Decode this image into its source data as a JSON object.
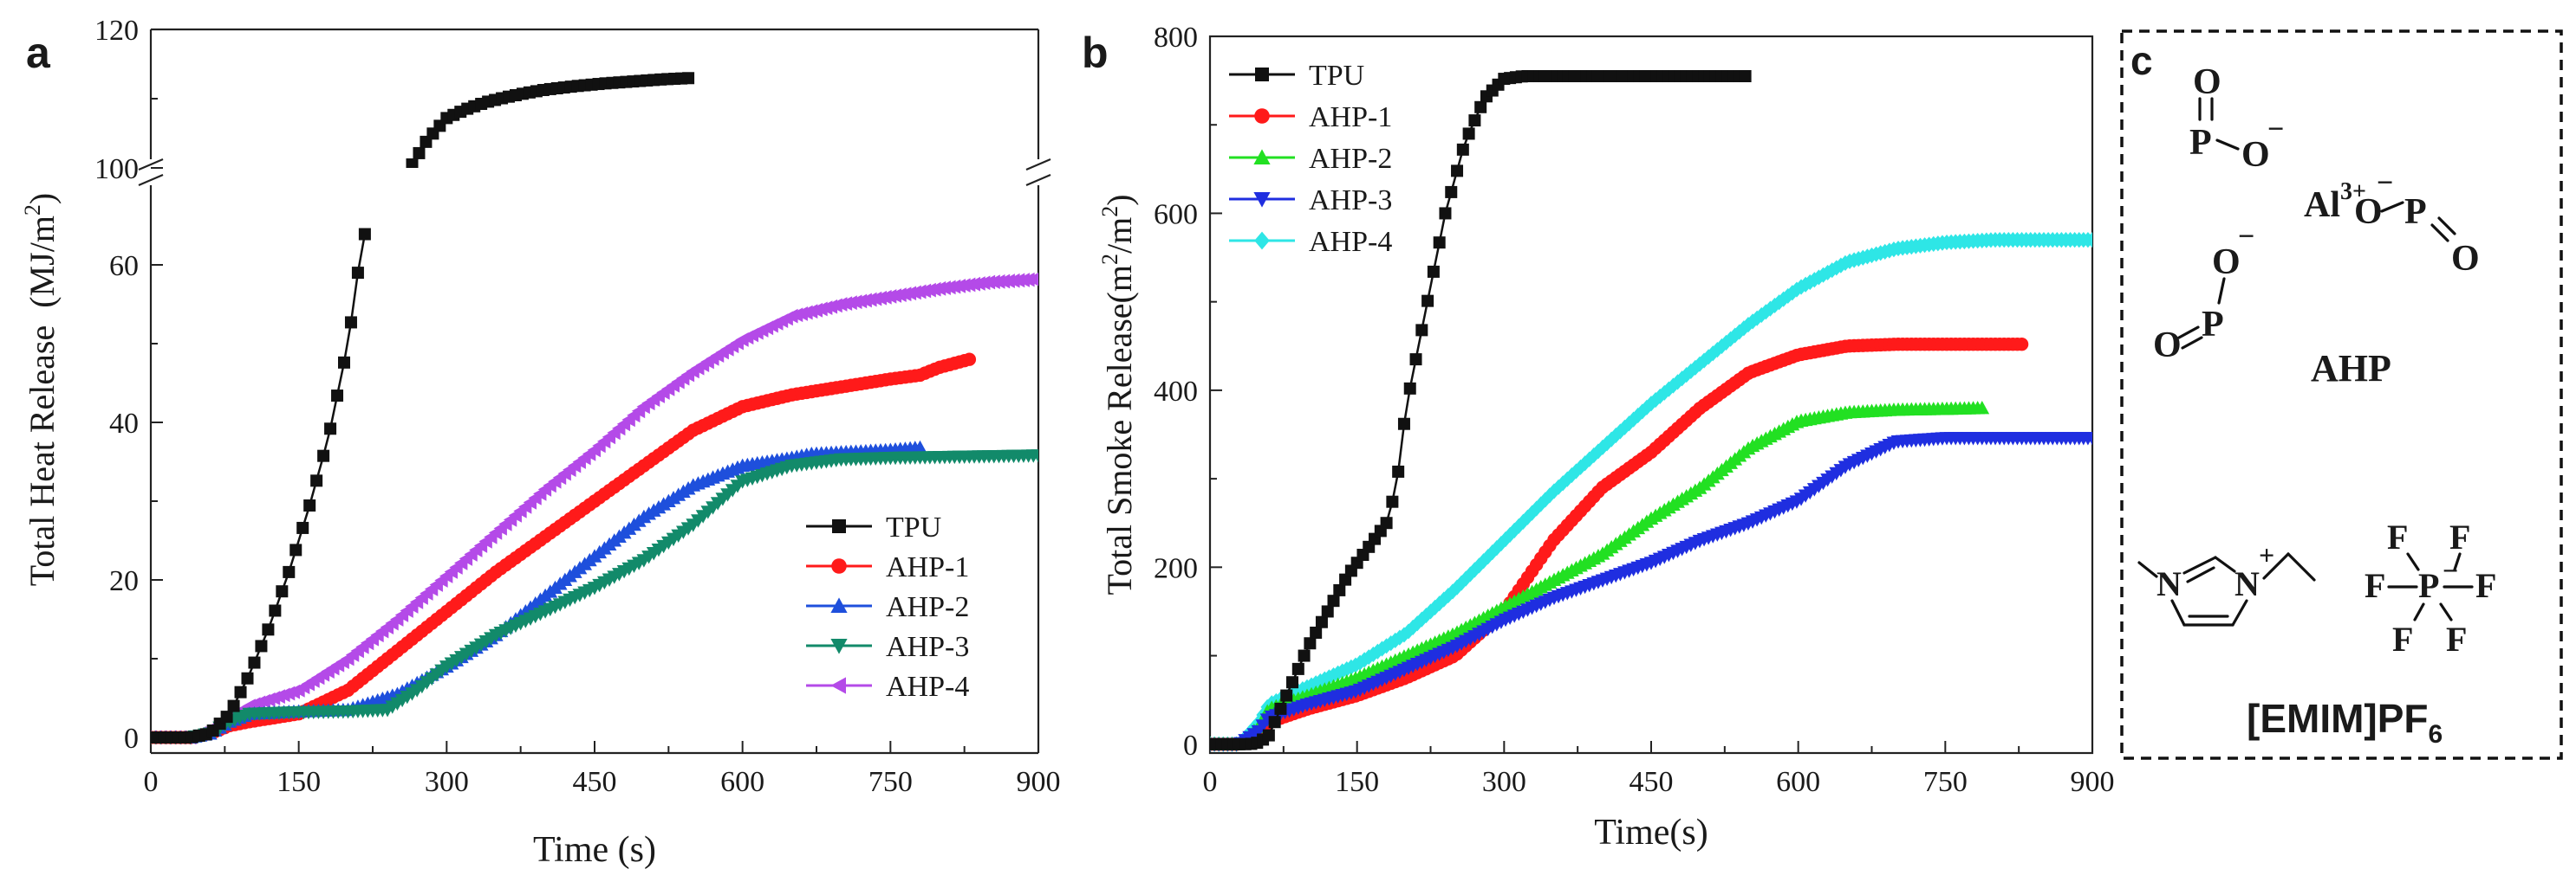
{
  "colors": {
    "TPU": "#111111",
    "AHP-1": "#ff1a1a",
    "AHP-2": "#1e4fdc",
    "AHP-3": "#128a6a",
    "AHP-4": "#b44ae8",
    "AHP-2-b": "#22e022",
    "AHP-3-b": "#1f2ee0",
    "AHP-4-b": "#2ee6e6"
  },
  "chart_data": [
    {
      "panel": "a",
      "type": "line",
      "title": "",
      "xlabel": "Time (s)",
      "ylabel": "Total Heat Release (MJ/m²)",
      "ylabel_main": "Total Heat Release  (MJ/m",
      "ylabel_sup": "2",
      "ylabel_end": ")",
      "xlim": [
        0,
        900
      ],
      "ylim_lower": [
        -2,
        68
      ],
      "ylim_upper": [
        100,
        120
      ],
      "axis_break": true,
      "xticks": [
        "0",
        "150",
        "300",
        "450",
        "600",
        "750",
        "900"
      ],
      "yticks_lower": [
        "0",
        "20",
        "40",
        "60"
      ],
      "yticks_upper": [
        "100",
        "120"
      ],
      "legend_position": "right-middle",
      "series": [
        {
          "name": "TPU",
          "marker": "square",
          "segments": [
            {
              "x": [
                0,
                40,
                60,
                80,
                100,
                120,
                140,
                160,
                180,
                200,
                210,
                220
              ],
              "y": [
                0,
                0,
                0.5,
                3,
                8,
                14,
                21,
                29,
                38,
                50,
                59,
                66
              ]
            },
            {
              "x": [
                265,
                280,
                300,
                320,
                340,
                360,
                380,
                400,
                430,
                460,
                490,
                520,
                550
              ],
              "y": [
                100.5,
                104,
                107.2,
                108.5,
                109.5,
                110.2,
                110.8,
                111.3,
                111.8,
                112.2,
                112.5,
                112.8,
                113
              ]
            }
          ]
        },
        {
          "name": "AHP-1",
          "marker": "circle",
          "x": [
            0,
            40,
            60,
            80,
            100,
            150,
            200,
            250,
            300,
            350,
            400,
            450,
            500,
            550,
            600,
            650,
            700,
            750,
            780,
            800,
            830
          ],
          "y": [
            0,
            0,
            0.5,
            1.5,
            2,
            3,
            6,
            11,
            16,
            21,
            25.5,
            30,
            34.5,
            39,
            42,
            43.5,
            44.5,
            45.5,
            46,
            47,
            48
          ]
        },
        {
          "name": "AHP-2",
          "marker": "triangle-up",
          "x": [
            0,
            40,
            60,
            80,
            100,
            150,
            200,
            250,
            300,
            350,
            400,
            450,
            500,
            550,
            600,
            650,
            670,
            700,
            750,
            780
          ],
          "y": [
            0,
            0,
            0.5,
            2,
            3,
            3.3,
            3.5,
            5.5,
            9,
            13,
            18,
            23,
            28,
            32,
            34.5,
            35.5,
            36,
            36.2,
            36.5,
            36.8
          ]
        },
        {
          "name": "AHP-3",
          "marker": "triangle-down",
          "x": [
            0,
            40,
            60,
            80,
            100,
            150,
            200,
            240,
            270,
            300,
            350,
            400,
            450,
            500,
            550,
            600,
            650,
            700,
            750,
            800,
            850,
            900
          ],
          "y": [
            0,
            0,
            0.5,
            2,
            3,
            3.2,
            3.3,
            3.5,
            6,
            9,
            13,
            16,
            19,
            22.5,
            27,
            32.5,
            34.5,
            35.3,
            35.5,
            35.6,
            35.7,
            35.8
          ]
        },
        {
          "name": "AHP-4",
          "marker": "triangle-left",
          "x": [
            0,
            40,
            60,
            80,
            100,
            150,
            200,
            250,
            300,
            350,
            400,
            450,
            500,
            550,
            600,
            650,
            700,
            750,
            800,
            850,
            900
          ],
          "y": [
            0,
            0,
            1,
            2.5,
            4,
            6,
            10,
            15,
            20.5,
            26,
            31.5,
            36.5,
            42,
            46.5,
            50.5,
            53.5,
            55,
            56,
            57,
            57.8,
            58.2
          ]
        }
      ]
    },
    {
      "panel": "b",
      "type": "line",
      "title": "",
      "xlabel": "Time(s)",
      "ylabel": "Total Smoke Release(m²/m²)",
      "ylabel_main": "Total Smoke Release(m",
      "ylabel_sup": "2",
      "ylabel_mid": "/m",
      "ylabel_sup2": "2",
      "ylabel_end": ")",
      "xlim": [
        0,
        900
      ],
      "ylim": [
        -10,
        800
      ],
      "xticks": [
        "0",
        "150",
        "300",
        "450",
        "600",
        "750",
        "900"
      ],
      "yticks": [
        "0",
        "200",
        "400",
        "600",
        "800"
      ],
      "legend_position": "top-left",
      "series": [
        {
          "name": "TPU",
          "marker": "square",
          "x": [
            0,
            40,
            50,
            60,
            80,
            100,
            120,
            140,
            160,
            180,
            190,
            200,
            220,
            240,
            260,
            280,
            300,
            320,
            350,
            400,
            450,
            500,
            550
          ],
          "y": [
            0,
            0,
            2,
            10,
            60,
            110,
            150,
            190,
            220,
            250,
            290,
            380,
            490,
            600,
            680,
            730,
            752,
            755,
            755,
            755,
            755,
            755,
            755
          ]
        },
        {
          "name": "AHP-1",
          "marker": "circle",
          "x": [
            0,
            30,
            50,
            60,
            100,
            150,
            200,
            250,
            300,
            350,
            400,
            450,
            500,
            550,
            600,
            650,
            700,
            750,
            830
          ],
          "y": [
            0,
            0,
            10,
            25,
            40,
            55,
            75,
            100,
            150,
            230,
            290,
            330,
            380,
            420,
            440,
            450,
            452,
            452,
            452
          ]
        },
        {
          "name": "AHP-2",
          "marker": "triangle-up",
          "x": [
            0,
            30,
            50,
            60,
            100,
            150,
            200,
            250,
            300,
            350,
            400,
            450,
            500,
            550,
            600,
            650,
            700,
            750,
            790
          ],
          "y": [
            0,
            0,
            20,
            40,
            55,
            75,
            100,
            125,
            155,
            185,
            215,
            255,
            290,
            335,
            365,
            375,
            378,
            379,
            380
          ]
        },
        {
          "name": "AHP-3",
          "marker": "triangle-down",
          "x": [
            0,
            30,
            50,
            60,
            100,
            150,
            200,
            250,
            300,
            350,
            400,
            450,
            500,
            550,
            600,
            650,
            700,
            750,
            800,
            900
          ],
          "y": [
            0,
            0,
            15,
            30,
            45,
            60,
            85,
            110,
            140,
            165,
            185,
            205,
            230,
            250,
            275,
            315,
            342,
            346,
            346,
            346
          ]
        },
        {
          "name": "AHP-4",
          "marker": "diamond",
          "x": [
            0,
            30,
            50,
            60,
            100,
            150,
            200,
            250,
            300,
            350,
            400,
            450,
            500,
            550,
            600,
            650,
            700,
            750,
            800,
            900
          ],
          "y": [
            0,
            0,
            25,
            45,
            65,
            90,
            125,
            175,
            230,
            285,
            335,
            385,
            430,
            475,
            515,
            545,
            560,
            567,
            570,
            570
          ]
        }
      ]
    }
  ],
  "panel_labels": {
    "a": "a",
    "b": "b",
    "c": "c"
  },
  "panel_c": {
    "ahp_name": "AHP",
    "al_ion": "Al",
    "al_charge": "3+",
    "atoms": {
      "P": "P",
      "O": "O",
      "N": "N",
      "F": "F"
    },
    "charge_minus": "−",
    "charge_plus": "+",
    "ionic_liquid_name": "[EMIM]PF",
    "ionic_liquid_sub": "6"
  }
}
